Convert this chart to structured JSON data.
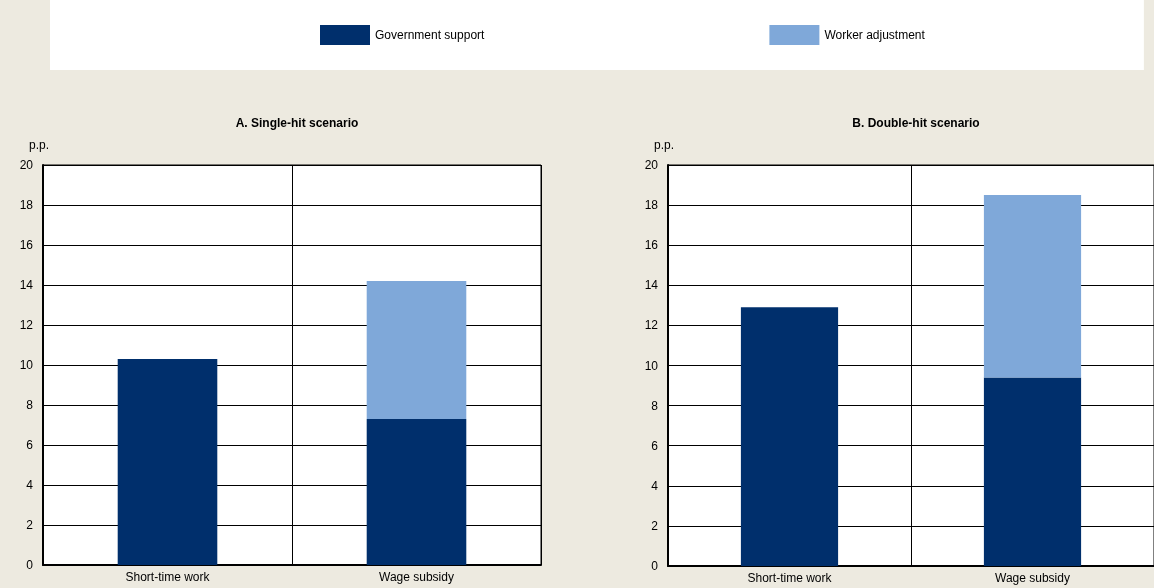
{
  "chart_data": [
    {
      "type": "bar",
      "title": "A. Single-hit scenario",
      "ylabel": "p.p.",
      "categories": [
        "Short-time work",
        "Wage subsidy"
      ],
      "stacked": true,
      "ylim": [
        0,
        20
      ],
      "yticks": [
        0,
        2,
        4,
        6,
        8,
        10,
        12,
        14,
        16,
        18,
        20
      ],
      "grid": true,
      "legend": "top",
      "series": [
        {
          "name": "Government support",
          "color": "#002f6c",
          "values": [
            10.3,
            7.3
          ]
        },
        {
          "name": "Worker adjustment",
          "color": "#7fa8d9",
          "values": [
            null,
            6.9
          ]
        }
      ]
    },
    {
      "type": "bar",
      "title": "B. Double-hit scenario",
      "ylabel": "p.p.",
      "categories": [
        "Short-time work",
        "Wage subsidy"
      ],
      "stacked": true,
      "ylim": [
        0,
        20
      ],
      "yticks": [
        0,
        2,
        4,
        6,
        8,
        10,
        12,
        14,
        16,
        18,
        20
      ],
      "grid": true,
      "series": [
        {
          "color": "#002f6c",
          "values": [
            12.9,
            9.4
          ]
        },
        {
          "color": "#7fa8d9",
          "values": [
            null,
            9.1
          ]
        }
      ]
    }
  ]
}
